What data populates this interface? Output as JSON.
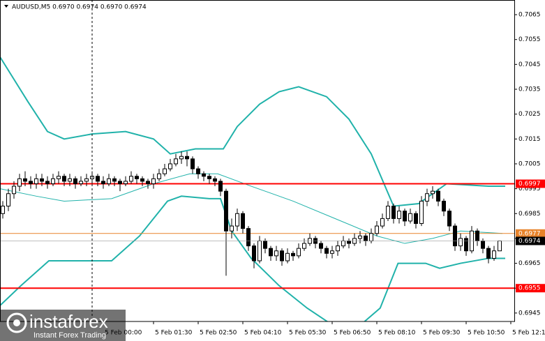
{
  "chart_data": {
    "type": "candlestick",
    "title": "AUDUSD,M5  0.6970 0.6974 0.6970 0.6974",
    "open": [
      0.6985,
      0.6988,
      0.6993,
      0.6996,
      0.6999,
      0.6998,
      0.6997,
      0.6999,
      0.6998,
      0.6997,
      0.6999,
      0.7,
      0.6998,
      0.6999,
      0.6997,
      0.6998,
      0.6999,
      0.7,
      0.6998,
      0.6997,
      0.6999,
      0.6998,
      0.6997,
      0.6998,
      0.7,
      0.6999,
      0.6998,
      0.6997,
      0.6999,
      0.7001,
      0.7003,
      0.7005,
      0.7007,
      0.7008,
      0.7007,
      0.7003,
      0.7001,
      0.7,
      0.6999,
      0.6998,
      0.6994,
      0.6978,
      0.698,
      0.6985,
      0.6979,
      0.6972,
      0.6966,
      0.6974,
      0.6971,
      0.6968,
      0.697,
      0.6966,
      0.6969,
      0.6968,
      0.6971,
      0.6973,
      0.6975,
      0.6973,
      0.6971,
      0.6969,
      0.697,
      0.6972,
      0.6974,
      0.6973,
      0.6975,
      0.6976,
      0.6974,
      0.6977,
      0.698,
      0.6983,
      0.6988,
      0.6983,
      0.6986,
      0.6982,
      0.6985,
      0.6981,
      0.699,
      0.6993,
      0.6994,
      0.699,
      0.6986,
      0.698,
      0.6972,
      0.6975,
      0.697,
      0.6978,
      0.6974,
      0.6971,
      0.6967,
      0.697
    ],
    "high": [
      0.699,
      0.6995,
      0.6998,
      0.7001,
      0.7002,
      0.7,
      0.7001,
      0.7001,
      0.7,
      0.7001,
      0.7002,
      0.7001,
      0.7001,
      0.7,
      0.7,
      0.7001,
      0.7002,
      0.7001,
      0.7,
      0.7001,
      0.7,
      0.6999,
      0.7,
      0.7002,
      0.7001,
      0.7,
      0.6999,
      0.7001,
      0.7003,
      0.7005,
      0.7007,
      0.7009,
      0.701,
      0.701,
      0.7008,
      0.7004,
      0.7002,
      0.7001,
      0.7,
      0.6999,
      0.6995,
      0.6983,
      0.6987,
      0.6986,
      0.698,
      0.6973,
      0.6976,
      0.6975,
      0.6972,
      0.6972,
      0.6971,
      0.6971,
      0.697,
      0.6973,
      0.6975,
      0.6977,
      0.6976,
      0.6974,
      0.6972,
      0.6972,
      0.6974,
      0.6976,
      0.6975,
      0.6977,
      0.6978,
      0.6977,
      0.6979,
      0.6982,
      0.6985,
      0.699,
      0.6989,
      0.6988,
      0.6987,
      0.6987,
      0.6986,
      0.6992,
      0.6995,
      0.6996,
      0.6995,
      0.6991,
      0.6987,
      0.6981,
      0.6977,
      0.6976,
      0.698,
      0.6979,
      0.6975,
      0.6972,
      0.6972,
      0.6974
    ],
    "low": [
      0.6983,
      0.6986,
      0.6991,
      0.6994,
      0.6996,
      0.6995,
      0.6995,
      0.6996,
      0.6995,
      0.6996,
      0.6997,
      0.6996,
      0.6996,
      0.6995,
      0.6996,
      0.6996,
      0.6997,
      0.6996,
      0.6995,
      0.6996,
      0.6996,
      0.6994,
      0.6996,
      0.6997,
      0.6997,
      0.6996,
      0.6995,
      0.6995,
      0.6998,
      0.7,
      0.7002,
      0.7004,
      0.7005,
      0.7004,
      0.7001,
      0.6999,
      0.6998,
      0.6997,
      0.6996,
      0.6992,
      0.696,
      0.6975,
      0.6978,
      0.6977,
      0.697,
      0.6963,
      0.6965,
      0.6969,
      0.6966,
      0.6966,
      0.6964,
      0.6965,
      0.6966,
      0.6967,
      0.697,
      0.6972,
      0.6971,
      0.6969,
      0.6967,
      0.6967,
      0.6968,
      0.6971,
      0.6971,
      0.6972,
      0.6973,
      0.6972,
      0.6973,
      0.6976,
      0.6979,
      0.6982,
      0.6981,
      0.6981,
      0.698,
      0.6981,
      0.6979,
      0.698,
      0.6988,
      0.6991,
      0.6988,
      0.6984,
      0.6978,
      0.697,
      0.697,
      0.6968,
      0.6969,
      0.6972,
      0.6969,
      0.6965,
      0.6966,
      0.697
    ],
    "close": [
      0.6988,
      0.6993,
      0.6996,
      0.6999,
      0.6998,
      0.6997,
      0.6999,
      0.6998,
      0.6997,
      0.6999,
      0.7,
      0.6998,
      0.6999,
      0.6997,
      0.6998,
      0.6999,
      0.7,
      0.6998,
      0.6997,
      0.6999,
      0.6998,
      0.6997,
      0.6998,
      0.7,
      0.6999,
      0.6998,
      0.6997,
      0.6999,
      0.7001,
      0.7003,
      0.7005,
      0.7007,
      0.7008,
      0.7007,
      0.7003,
      0.7001,
      0.7,
      0.6999,
      0.6998,
      0.6994,
      0.6978,
      0.698,
      0.6985,
      0.6979,
      0.6972,
      0.6966,
      0.6974,
      0.6971,
      0.6968,
      0.697,
      0.6966,
      0.6969,
      0.6968,
      0.6971,
      0.6973,
      0.6975,
      0.6973,
      0.6971,
      0.6969,
      0.697,
      0.6972,
      0.6974,
      0.6973,
      0.6975,
      0.6976,
      0.6974,
      0.6977,
      0.698,
      0.6983,
      0.6988,
      0.6983,
      0.6986,
      0.6982,
      0.6985,
      0.6981,
      0.699,
      0.6993,
      0.6994,
      0.699,
      0.6986,
      0.698,
      0.6972,
      0.6975,
      0.697,
      0.6978,
      0.6974,
      0.6971,
      0.6967,
      0.697,
      0.6974
    ],
    "bands": [
      {
        "color": "#20b2aa",
        "x": [
          -0.5,
          4.5,
          8,
          11,
          16,
          22,
          27,
          30,
          34.5,
          39.5,
          42,
          46,
          49.5,
          53,
          58,
          62,
          66,
          70,
          74.5,
          79.5,
          87,
          90
        ],
        "values": [
          0.7048,
          0.703,
          0.7018,
          0.7015,
          0.7017,
          0.7018,
          0.7015,
          0.7009,
          0.7011,
          0.7011,
          0.702,
          0.7029,
          0.7034,
          0.7036,
          0.7032,
          0.7023,
          0.7009,
          0.6988,
          0.6989,
          0.6997,
          0.6996,
          0.6996
        ]
      },
      {
        "color": "#20b2aa",
        "x": [
          -0.5,
          6,
          11,
          19.5,
          27,
          33.5,
          38.5,
          44.5,
          52,
          59.5,
          67,
          72,
          77,
          82,
          89.5
        ],
        "values": [
          0.6995,
          0.6992,
          0.699,
          0.6991,
          0.6997,
          0.7001,
          0.7001,
          0.6996,
          0.699,
          0.6983,
          0.6976,
          0.6973,
          0.6975,
          0.6978,
          0.6977
        ]
      },
      {
        "color": "#20b2aa",
        "x": [
          -0.5,
          3.25,
          8.25,
          12,
          19.5,
          24.5,
          29.5,
          32,
          37,
          39,
          41,
          44.5,
          49.5,
          54.5,
          58.5,
          64.5,
          67.6,
          70.8,
          75.75,
          78.25,
          82,
          87,
          90
        ],
        "values": [
          0.6948,
          0.6956,
          0.6966,
          0.6966,
          0.6966,
          0.6976,
          0.699,
          0.6992,
          0.6991,
          0.6991,
          0.6978,
          0.6967,
          0.6956,
          0.6947,
          0.6941,
          0.6941,
          0.6947,
          0.6965,
          0.6965,
          0.6963,
          0.6965,
          0.6967,
          0.6967
        ]
      }
    ],
    "levels": [
      {
        "value": 0.6997,
        "color": "#ff0000"
      },
      {
        "value": 0.6977,
        "color": "#e8832a"
      },
      {
        "value": 0.6955,
        "color": "#ff0000"
      }
    ],
    "current_price": 0.6974,
    "ylim": [
      0.69416,
      0.70709
    ],
    "yticks": [
      0.7065,
      0.7055,
      0.7045,
      0.7035,
      0.7025,
      0.7015,
      0.7005,
      0.6995,
      0.6985,
      0.6975,
      0.6965,
      0.6955,
      0.6945
    ],
    "xlim": [
      -0.5,
      91.75
    ],
    "xticks": [
      {
        "value": 18,
        "label": "5 Feb 00:00"
      },
      {
        "value": 27,
        "label": "5 Feb 01:30"
      },
      {
        "value": 35,
        "label": "5 Feb 02:50"
      },
      {
        "value": 43,
        "label": "5 Feb 04:10"
      },
      {
        "value": 51,
        "label": "5 Feb 05:30"
      },
      {
        "value": 59,
        "label": "5 Feb 06:50"
      },
      {
        "value": 67,
        "label": "5 Feb 08:10"
      },
      {
        "value": 75,
        "label": "5 Feb 09:30"
      },
      {
        "value": 83,
        "label": "5 Feb 10:50"
      },
      {
        "value": 91,
        "label": "5 Feb 12:10"
      }
    ],
    "watermark": {
      "brand": "instaforex",
      "tagline": "Instant Forex Trading"
    }
  }
}
